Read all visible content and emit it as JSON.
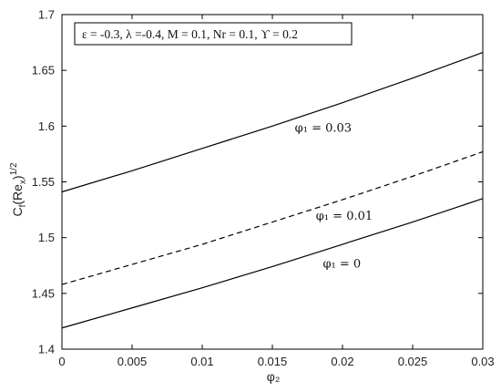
{
  "chart_data": {
    "type": "line",
    "title": "",
    "xlabel": "φ₂",
    "ylabel": "Cf(Rex)1/2",
    "ylabel_parts": {
      "main": "C",
      "sub1": "f",
      "paren_open": "(Re",
      "sub2": "x",
      "paren_close": ")",
      "sup": "1/2"
    },
    "xlim": [
      0,
      0.03
    ],
    "ylim": [
      1.4,
      1.7
    ],
    "x_ticks": [
      0,
      0.005,
      0.01,
      0.015,
      0.02,
      0.025,
      0.03
    ],
    "x_tick_labels": [
      "0",
      "0.005",
      "0.01",
      "0.015",
      "0.02",
      "0.025",
      "0.03"
    ],
    "y_ticks": [
      1.4,
      1.45,
      1.5,
      1.55,
      1.6,
      1.65,
      1.7
    ],
    "y_tick_labels": [
      "1.4",
      "1.45",
      "1.5",
      "1.55",
      "1.6",
      "1.65",
      "1.7"
    ],
    "grid": false,
    "info_box": "ε = -0.3, λ =-0.4, M = 0.1, Nr = 0.1, ϒ = 0.2",
    "series": [
      {
        "name": "",
        "label": "φ₁ = 0.03",
        "style": "solid",
        "color": "#000000",
        "x": [
          0,
          0.005,
          0.01,
          0.015,
          0.02,
          0.025,
          0.03
        ],
        "y": [
          1.541,
          1.56,
          1.58,
          1.6,
          1.621,
          1.643,
          1.666
        ]
      },
      {
        "name": "",
        "label": "φ₁ = 0.01",
        "style": "dashed",
        "color": "#000000",
        "x": [
          0,
          0.005,
          0.01,
          0.015,
          0.02,
          0.025,
          0.03
        ],
        "y": [
          1.458,
          1.476,
          1.494,
          1.514,
          1.534,
          1.555,
          1.577
        ]
      },
      {
        "name": "",
        "label": "φ₁ = 0",
        "style": "solid",
        "color": "#000000",
        "x": [
          0,
          0.005,
          0.01,
          0.015,
          0.02,
          0.025,
          0.03
        ],
        "y": [
          1.419,
          1.437,
          1.455,
          1.474,
          1.494,
          1.514,
          1.535
        ]
      }
    ],
    "annotations": [
      {
        "text": "φ₁ = 0.03",
        "x": 0.0166,
        "y": 1.595
      },
      {
        "text": "φ₁ = 0.01",
        "x": 0.0181,
        "y": 1.516
      },
      {
        "text": "φ₁ = 0",
        "x": 0.0186,
        "y": 1.473
      }
    ]
  }
}
